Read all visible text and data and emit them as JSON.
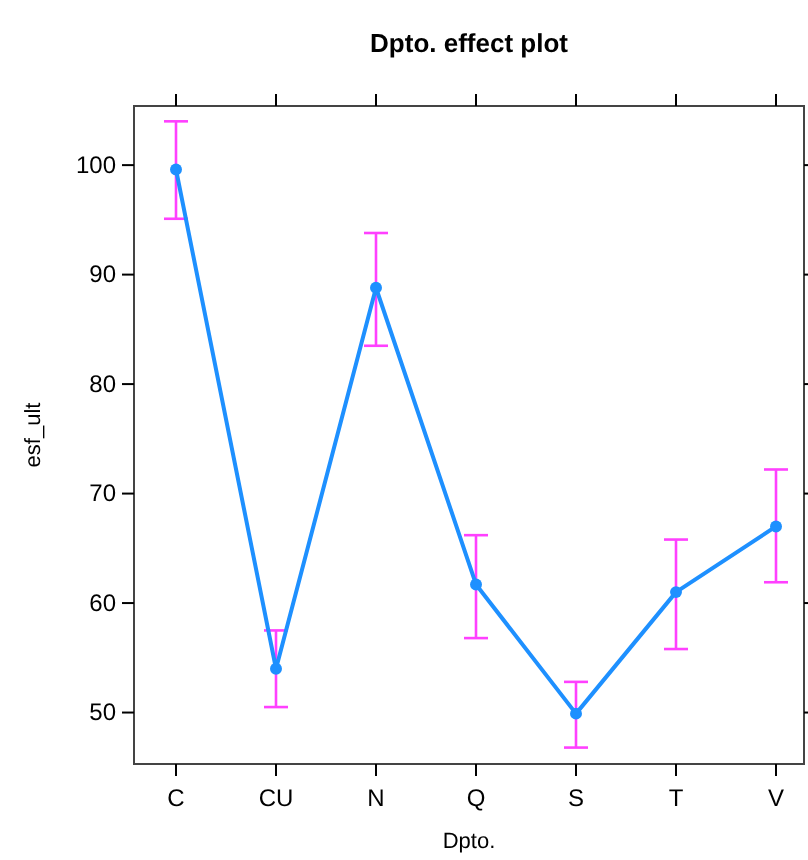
{
  "chart_data": {
    "type": "line",
    "title": "Dpto. effect plot",
    "xlabel": "Dpto.",
    "ylabel": "esf_ult",
    "categories": [
      "C",
      "CU",
      "N",
      "Q",
      "S",
      "T",
      "V"
    ],
    "series": [
      {
        "color": "#1e90ff",
        "values": [
          99.6,
          54.0,
          88.8,
          61.7,
          49.9,
          61.0,
          67.0
        ],
        "errors": [
          [
            95.1,
            104.0
          ],
          [
            50.5,
            57.5
          ],
          [
            83.5,
            93.8
          ],
          [
            56.8,
            66.2
          ],
          [
            46.8,
            52.8
          ],
          [
            55.8,
            65.8
          ],
          [
            61.9,
            72.2
          ]
        ]
      }
    ],
    "ylim": [
      45.3,
      105.4
    ],
    "yticks": [
      50,
      60,
      70,
      80,
      90,
      100
    ],
    "marker": "circle",
    "line_style": "solid"
  }
}
